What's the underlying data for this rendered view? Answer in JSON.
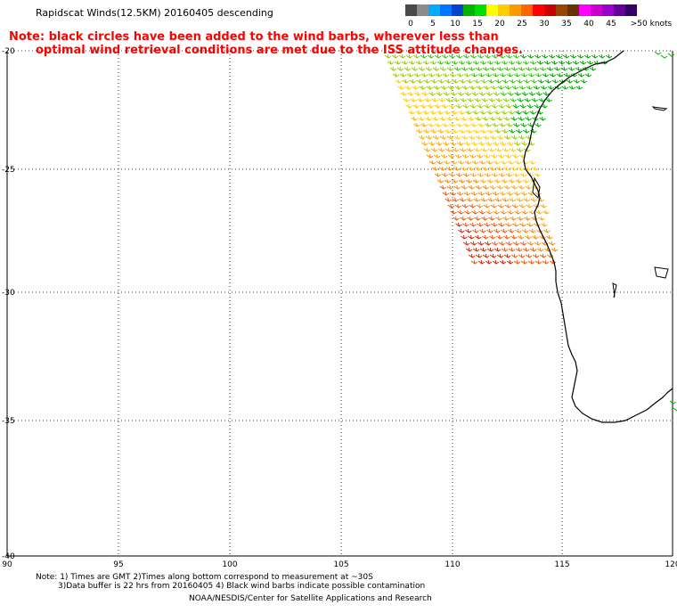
{
  "header": {
    "title": "Rapidscat Winds(12.5KM) 20160405 descending",
    "note_line1": "Note: black circles have been added to the wind barbs, wherever less than",
    "note_line2": "optimal wind retrieval conditions are met due to the ISS attitude changes."
  },
  "color_scale": {
    "colors": [
      "#4a4a4a",
      "#8c8c8c",
      "#00aaff",
      "#0077ff",
      "#0044cc",
      "#00b400",
      "#00e000",
      "#ffff00",
      "#ffcc00",
      "#ff9900",
      "#ff6600",
      "#ff0000",
      "#cc0000",
      "#994400",
      "#663300",
      "#ff00ff",
      "#cc00cc",
      "#9900cc",
      "#660099",
      "#330066"
    ],
    "labels": [
      "0",
      "5",
      "10",
      "15",
      "20",
      "25",
      "30",
      "35",
      "40",
      "45",
      ">50 knots"
    ]
  },
  "map": {
    "lat_labels": [
      "-20",
      "-25",
      "-30",
      "-35",
      "-40"
    ],
    "lon_labels": [
      "90",
      "95",
      "100",
      "105",
      "110",
      "115",
      "120"
    ]
  },
  "footer": {
    "line1": "Note: 1) Times are GMT 2)Times along bottom correspond to measurement at ~30S",
    "line2": "3)Data buffer is 22 hrs from 20160405 4) Black wind barbs indicate possible contamination",
    "line3": "NOAA/NESDIS/Center for Satellite Applications and Research"
  }
}
